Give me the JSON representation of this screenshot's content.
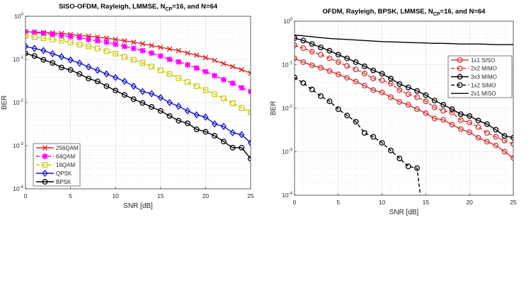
{
  "chart_data": [
    {
      "type": "line",
      "title": "SISO-OFDM, Rayleigh, LMMSE, N_CP=16, and N=64",
      "xlabel": "SNR [dB]",
      "ylabel": "BER",
      "xlim": [
        0,
        25
      ],
      "ylim": [
        0.0001,
        1
      ],
      "yscale": "log",
      "grid": "on (major and minor)",
      "legend_position": "bottom-left",
      "xticks": [
        "0",
        "5",
        "10",
        "15",
        "20",
        "25"
      ],
      "yticks": [
        {
          "base": "10",
          "exp": "0"
        },
        {
          "base": "10",
          "exp": "-1"
        },
        {
          "base": "10",
          "exp": "-2"
        },
        {
          "base": "10",
          "exp": "-3"
        },
        {
          "base": "10",
          "exp": "-4"
        }
      ],
      "x": [
        0,
        1,
        2,
        3,
        4,
        5,
        6,
        7,
        8,
        9,
        10,
        11,
        12,
        13,
        14,
        15,
        16,
        17,
        18,
        19,
        20,
        21,
        22,
        23,
        24,
        25
      ],
      "series": [
        {
          "name": "256QAM",
          "color": "#d92b2b",
          "line": "solid",
          "marker": "x",
          "values": [
            0.44,
            0.43,
            0.42,
            0.41,
            0.4,
            0.38,
            0.36,
            0.345,
            0.33,
            0.31,
            0.29,
            0.27,
            0.25,
            0.23,
            0.21,
            0.19,
            0.175,
            0.16,
            0.14,
            0.125,
            0.11,
            0.095,
            0.08,
            0.068,
            0.058,
            0.048
          ]
        },
        {
          "name": "64QAM",
          "color": "#ff00ff",
          "line": "dashed",
          "marker": "star",
          "values": [
            0.43,
            0.42,
            0.4,
            0.38,
            0.36,
            0.34,
            0.32,
            0.29,
            0.27,
            0.25,
            0.225,
            0.2,
            0.18,
            0.16,
            0.14,
            0.12,
            0.1,
            0.088,
            0.075,
            0.063,
            0.052,
            0.042,
            0.034,
            0.028,
            0.022,
            0.018
          ]
        },
        {
          "name": "16QAM",
          "color": "#c8c800",
          "line": "dashed",
          "marker": "square",
          "values": [
            0.35,
            0.33,
            0.31,
            0.29,
            0.27,
            0.25,
            0.22,
            0.2,
            0.18,
            0.155,
            0.136,
            0.115,
            0.098,
            0.083,
            0.068,
            0.056,
            0.046,
            0.037,
            0.03,
            0.024,
            0.0195,
            0.0155,
            0.0125,
            0.0097,
            0.0075,
            0.006
          ]
        },
        {
          "name": "QPSK",
          "color": "#1414c8",
          "line": "solid",
          "marker": "diamond",
          "values": [
            0.2,
            0.18,
            0.16,
            0.135,
            0.115,
            0.097,
            0.082,
            0.067,
            0.056,
            0.046,
            0.038,
            0.031,
            0.024,
            0.018,
            0.016,
            0.013,
            0.01,
            0.0082,
            0.0064,
            0.0052,
            0.0046,
            0.0032,
            0.0028,
            0.002,
            0.0018,
            0.00117
          ]
        },
        {
          "name": "BPSK",
          "color": "#000000",
          "line": "solid",
          "marker": "circle",
          "values": [
            0.138,
            0.12,
            0.098,
            0.083,
            0.065,
            0.057,
            0.046,
            0.036,
            0.031,
            0.024,
            0.019,
            0.015,
            0.012,
            0.0098,
            0.0079,
            0.0064,
            0.0049,
            0.0038,
            0.0033,
            0.0024,
            0.0021,
            0.0017,
            0.00125,
            0.0009,
            0.0009,
            0.0005
          ]
        }
      ]
    },
    {
      "type": "line",
      "title": "OFDM, Rayleigh, BPSK, LMMSE, N_CP=16, and N=64",
      "xlabel": "SNR [dB]",
      "ylabel": "BER",
      "xlim": [
        0,
        25
      ],
      "ylim": [
        0.0001,
        1
      ],
      "yscale": "log",
      "grid": "on (major and minor)",
      "legend_position": "top-right",
      "xticks": [
        "0",
        "5",
        "10",
        "15",
        "20",
        "25"
      ],
      "yticks": [
        {
          "base": "10",
          "exp": "0"
        },
        {
          "base": "10",
          "exp": "-1"
        },
        {
          "base": "10",
          "exp": "-2"
        },
        {
          "base": "10",
          "exp": "-3"
        },
        {
          "base": "10",
          "exp": "-4"
        }
      ],
      "x": [
        0,
        1,
        2,
        3,
        4,
        5,
        6,
        7,
        8,
        9,
        10,
        11,
        12,
        13,
        14,
        15,
        16,
        17,
        18,
        19,
        20,
        21,
        22,
        23,
        24,
        25
      ],
      "series": [
        {
          "name": "1x1 SISO",
          "color": "#d63333",
          "line": "solid",
          "marker": "circle",
          "values": [
            0.14,
            0.115,
            0.097,
            0.085,
            0.072,
            0.06,
            0.05,
            0.041,
            0.033,
            0.026,
            0.023,
            0.018,
            0.014,
            0.012,
            0.0095,
            0.0077,
            0.0058,
            0.0054,
            0.0042,
            0.0033,
            0.0028,
            0.0021,
            0.0017,
            0.0014,
            0.001,
            0.00072
          ]
        },
        {
          "name": "2x2 MIMO",
          "color": "#d63333",
          "line": "dashed",
          "marker": "circle",
          "values": [
            0.28,
            0.24,
            0.2,
            0.17,
            0.14,
            0.115,
            0.094,
            0.078,
            0.063,
            0.048,
            0.044,
            0.037,
            0.026,
            0.021,
            0.018,
            0.0144,
            0.0105,
            0.0087,
            0.008,
            0.0053,
            0.0047,
            0.0037,
            0.0027,
            0.0022,
            0.0018,
            0.0015
          ]
        },
        {
          "name": "3x3 MIMO",
          "color": "#000000",
          "line": "solid",
          "marker": "circle",
          "values": [
            0.41,
            0.36,
            0.3,
            0.25,
            0.21,
            0.17,
            0.14,
            0.115,
            0.092,
            0.074,
            0.062,
            0.048,
            0.036,
            0.03,
            0.025,
            0.02,
            0.015,
            0.012,
            0.0095,
            0.0073,
            0.0066,
            0.0052,
            0.0043,
            0.0032,
            0.0023,
            0.0021
          ]
        },
        {
          "name": "1x2 SIMO",
          "color": "#000000",
          "line": "dashed",
          "marker": "circle",
          "values": [
            0.051,
            0.038,
            0.027,
            0.019,
            0.0144,
            0.0095,
            0.0068,
            0.0049,
            0.0027,
            0.0022,
            0.0016,
            0.00107,
            0.0007,
            0.00046,
            0.00042,
            1e-05,
            null,
            null,
            null,
            null,
            null,
            null,
            null,
            null,
            null,
            null
          ]
        },
        {
          "name": "2x1 MISO",
          "color": "#000000",
          "line": "solid",
          "marker": "none",
          "values": [
            0.48,
            0.46,
            0.44,
            0.42,
            0.4,
            0.39,
            0.38,
            0.37,
            0.36,
            0.35,
            0.34,
            0.335,
            0.33,
            0.325,
            0.32,
            0.315,
            0.31,
            0.31,
            0.305,
            0.3,
            0.3,
            0.3,
            0.295,
            0.29,
            0.29,
            0.29
          ]
        }
      ]
    }
  ]
}
